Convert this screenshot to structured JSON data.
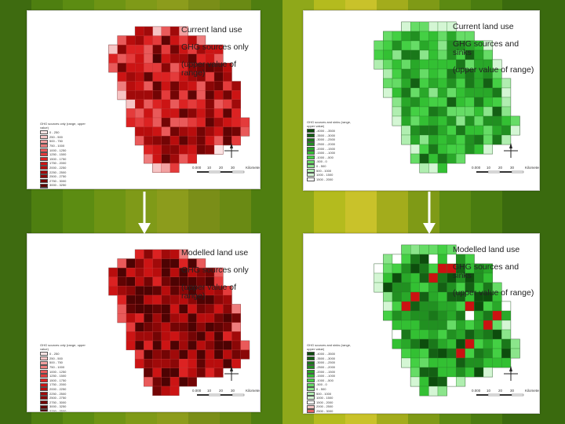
{
  "panels": [
    {
      "id": "top-left",
      "title_lines": [
        "Current land use",
        "GHG sources only",
        "(upper value of range)"
      ],
      "palette": "red",
      "legend_title": "GHG sources only (range, upper value)",
      "legend_values": [
        "0 - 250",
        "250 - 500",
        "500 - 750",
        "750 - 1000",
        "1000 - 1250",
        "1250 - 1500",
        "1500 - 1750",
        "1750 - 2000",
        "2000 - 2250",
        "2250 - 2500",
        "2500 - 2750",
        "2750 - 3000",
        "3000 - 3250",
        "3250 - 3500"
      ],
      "scale_labels": [
        "0.000",
        "10",
        "20",
        "30",
        "Kilometers"
      ]
    },
    {
      "id": "top-right",
      "title_lines": [
        "Current land use",
        "GHG sources and sinks",
        "(upper value of range)"
      ],
      "palette": "green",
      "legend_title": "GHG sources and sinks (range, upper value)",
      "legend_values": [
        "-4000 - -3500",
        "-3500 - -3000",
        "-3000 - -2500",
        "-2500 - -2000",
        "-2000 - -1500",
        "-1500 - -1000",
        "-1000 - -500",
        "-500 - 0",
        "0 - 500",
        "500 - 1000",
        "1000 - 1500",
        "1500 - 2000"
      ],
      "scale_labels": [
        "0.000",
        "10",
        "20",
        "30",
        "Kilometers"
      ]
    },
    {
      "id": "bottom-left",
      "title_lines": [
        "Modelled land use",
        "GHG sources only",
        "(upper value of range)"
      ],
      "palette": "red",
      "legend_title": "GHG sources only (range, upper value)",
      "legend_values": [
        "0 - 250",
        "250 - 500",
        "500 - 750",
        "750 - 1000",
        "1000 - 1250",
        "1250 - 1500",
        "1500 - 1750",
        "1750 - 2000",
        "2000 - 2250",
        "2250 - 2500",
        "2500 - 2750",
        "2750 - 3000",
        "3000 - 3250",
        "3250 - 3500"
      ],
      "scale_labels": [
        "0.000",
        "10",
        "20",
        "30",
        "Kilometers"
      ]
    },
    {
      "id": "bottom-right",
      "title_lines": [
        "Modelled land use",
        "GHG sources and sinks",
        "(upper value of range)"
      ],
      "palette": "green",
      "legend_title": "GHG sources and sinks (range, upper value)",
      "legend_values": [
        "-4000 - -3500",
        "-3500 - -3000",
        "-3000 - -2500",
        "-2500 - -2000",
        "-2000 - -1500",
        "-1500 - -1000",
        "-1000 - -500",
        "-500 - 0",
        "0 - 500",
        "500 - 1000",
        "1000 - 1500",
        "1500 - 2000",
        "2000 - 2500",
        "2500 - 3000",
        "3000 - 3500"
      ],
      "scale_labels": [
        "0.000",
        "10",
        "20",
        "30",
        "Kilometers"
      ]
    }
  ],
  "colors": {
    "red_scale": [
      "#fbe3e3",
      "#f6c4c4",
      "#f2a0a0",
      "#ee7c7c",
      "#e95a5a",
      "#e43b3b",
      "#dc2222",
      "#cc1414",
      "#b80d0d",
      "#a00a0a",
      "#8a0707",
      "#730505",
      "#600404",
      "#4d0303"
    ],
    "green_scale": [
      "#0d4d0d",
      "#146014",
      "#1a781a",
      "#219021",
      "#29a829",
      "#33c033",
      "#44d044",
      "#66dc66",
      "#8be58b",
      "#b0eeb0",
      "#d4f6d4",
      "#ffffff",
      "#f3c2c2",
      "#e26464",
      "#cc1111"
    ]
  }
}
